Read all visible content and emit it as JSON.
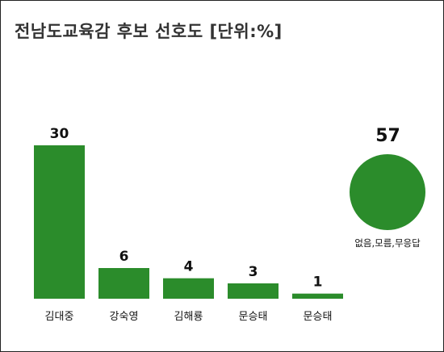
{
  "title": "전남도교육감 후보 선호도 [단위:%]",
  "colors": {
    "bar": "#2b8c2b",
    "text": "#111111",
    "title": "#333333"
  },
  "chart_data": [
    {
      "type": "bar",
      "title": "전남도교육감 후보 선호도 [단위:%]",
      "categories": [
        "김대중",
        "강숙영",
        "김해룡",
        "문승태",
        "문승태"
      ],
      "values": [
        30,
        6,
        4,
        3,
        1
      ],
      "unit": "%",
      "ylim": [
        0,
        30
      ],
      "grid": false
    },
    {
      "type": "bubble",
      "categories": [
        "없음,모름,무응답"
      ],
      "values": [
        57
      ],
      "unit": "%"
    }
  ],
  "bubble": {
    "value": "57",
    "label": "없음,모름,무응답"
  }
}
